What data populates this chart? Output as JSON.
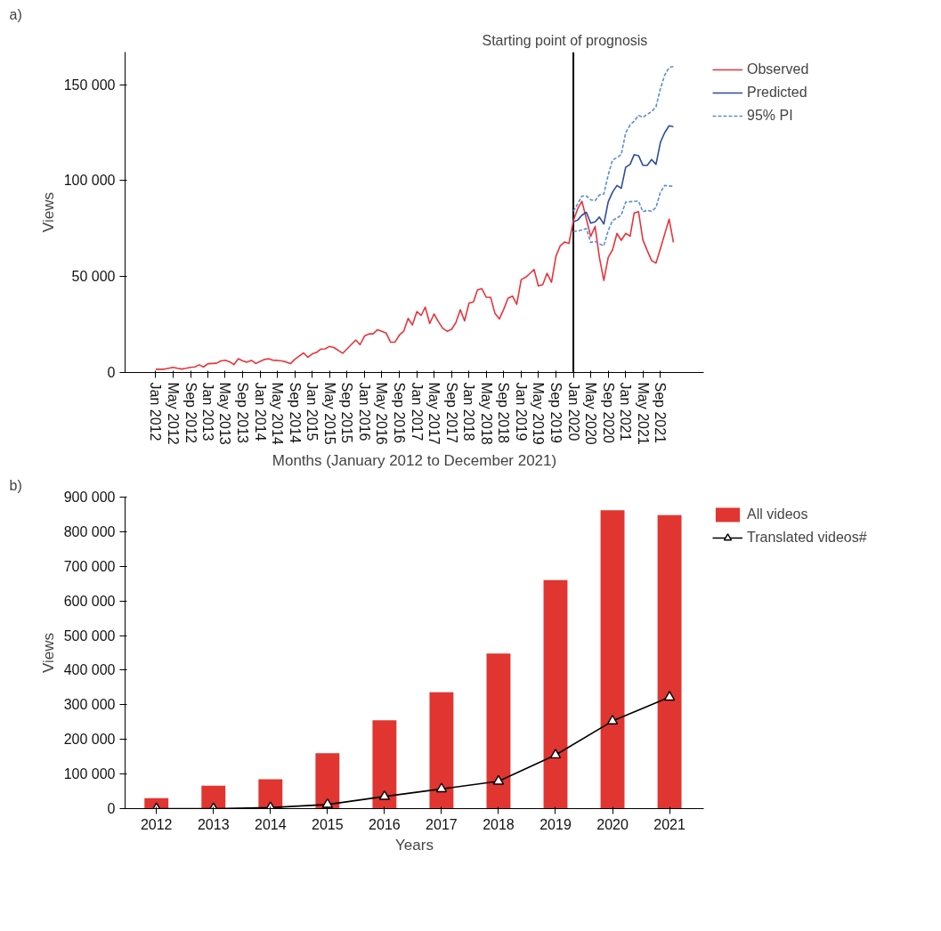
{
  "chart_data": [
    {
      "type": "line",
      "xlabel": "Months (January 2012 to December 2021)",
      "ylabel": "Views",
      "annotations": [
        "a)"
      ],
      "legend": "top right",
      "marker": "none",
      "xlim": [
        "2011-06",
        "2022-07"
      ],
      "ylim": [
        0,
        167000
      ],
      "yticks": [
        0,
        {
          "value": 50000,
          "label": "50 000"
        },
        {
          "value": 100000,
          "label": "100 000"
        },
        {
          "value": 150000,
          "label": "150 000"
        }
      ],
      "xticks": [
        {
          "value": "2012-01",
          "label": "Jan 2012"
        },
        {
          "value": "2012-05",
          "label": "May 2012"
        },
        {
          "value": "2012-09",
          "label": "Sep 2012"
        },
        {
          "value": "2013-01",
          "label": "Jan 2013"
        },
        {
          "value": "2013-05",
          "label": "May 2013"
        },
        {
          "value": "2013-09",
          "label": "Sep 2013"
        },
        {
          "value": "2014-01",
          "label": "Jan 2014"
        },
        {
          "value": "2014-05",
          "label": "May 2014"
        },
        {
          "value": "2014-09",
          "label": "Sep 2014"
        },
        {
          "value": "2015-01",
          "label": "Jan 2015"
        },
        {
          "value": "2015-05",
          "label": "May 2015"
        },
        {
          "value": "2015-09",
          "label": "Sep 2015"
        },
        {
          "value": "2016-01",
          "label": "Jan 2016"
        },
        {
          "value": "2016-05",
          "label": "May 2016"
        },
        {
          "value": "2016-09",
          "label": "Sep 2016"
        },
        {
          "value": "2017-01",
          "label": "Jan 2017"
        },
        {
          "value": "2017-05",
          "label": "May 2017"
        },
        {
          "value": "2017-09",
          "label": "Sep 2017"
        },
        {
          "value": "2018-01",
          "label": "Jan 2018"
        },
        {
          "value": "2018-05",
          "label": "May 2018"
        },
        {
          "value": "2018-09",
          "label": "Sep 2018"
        },
        {
          "value": "2019-01",
          "label": "Jan 2019"
        },
        {
          "value": "2019-05",
          "label": "May 2019"
        },
        {
          "value": "2019-09",
          "label": "Sep 2019"
        },
        {
          "value": "2020-01",
          "label": "Jan 2020"
        },
        {
          "value": "2020-05",
          "label": "May 2020"
        },
        {
          "value": "2020-09",
          "label": "Sep 2020"
        },
        {
          "value": "2021-01",
          "label": "Jan 2021"
        },
        {
          "value": "2021-05",
          "label": "May 2021"
        },
        {
          "value": "2021-09",
          "label": "Sep 2021"
        }
      ],
      "ref_lines": [
        {
          "axis": "x",
          "value": "2020-01",
          "label": "Starting point of prognosis",
          "color": "#000000"
        }
      ],
      "series": [
        {
          "name": "Observed",
          "color": "#e8343c",
          "x": [
            "2012-01",
            "2012-02",
            "2012-03",
            "2012-04",
            "2012-05",
            "2012-06",
            "2012-07",
            "2012-08",
            "2012-09",
            "2012-10",
            "2012-11",
            "2012-12",
            "2013-01",
            "2013-02",
            "2013-03",
            "2013-04",
            "2013-05",
            "2013-06",
            "2013-07",
            "2013-08",
            "2013-09",
            "2013-10",
            "2013-11",
            "2013-12",
            "2014-01",
            "2014-02",
            "2014-03",
            "2014-04",
            "2014-05",
            "2014-06",
            "2014-07",
            "2014-08",
            "2014-09",
            "2014-10",
            "2014-11",
            "2014-12",
            "2015-01",
            "2015-02",
            "2015-03",
            "2015-04",
            "2015-05",
            "2015-06",
            "2015-07",
            "2015-08",
            "2015-09",
            "2015-10",
            "2015-11",
            "2015-12",
            "2016-01",
            "2016-02",
            "2016-03",
            "2016-04",
            "2016-05",
            "2016-06",
            "2016-07",
            "2016-08",
            "2016-09",
            "2016-10",
            "2016-11",
            "2016-12",
            "2017-01",
            "2017-02",
            "2017-03",
            "2017-04",
            "2017-05",
            "2017-06",
            "2017-07",
            "2017-08",
            "2017-09",
            "2017-10",
            "2017-11",
            "2017-12",
            "2018-01",
            "2018-02",
            "2018-03",
            "2018-04",
            "2018-05",
            "2018-06",
            "2018-07",
            "2018-08",
            "2018-09",
            "2018-10",
            "2018-11",
            "2018-12",
            "2019-01",
            "2019-02",
            "2019-03",
            "2019-04",
            "2019-05",
            "2019-06",
            "2019-07",
            "2019-08",
            "2019-09",
            "2019-10",
            "2019-11",
            "2019-12",
            "2020-01",
            "2020-02",
            "2020-03",
            "2020-04",
            "2020-05",
            "2020-06",
            "2020-07",
            "2020-08",
            "2020-09",
            "2020-10",
            "2020-11",
            "2020-12",
            "2021-01",
            "2021-02",
            "2021-03",
            "2021-04",
            "2021-05",
            "2021-06",
            "2021-07",
            "2021-08",
            "2021-09",
            "2021-10",
            "2021-11",
            "2021-12"
          ],
          "values": [
            1700,
            1700,
            1700,
            2200,
            2700,
            2200,
            1800,
            2200,
            2700,
            2900,
            4000,
            2900,
            4600,
            4700,
            4800,
            6000,
            6400,
            5600,
            4100,
            7200,
            6000,
            5400,
            6300,
            4700,
            5800,
            6800,
            7200,
            6400,
            6300,
            6000,
            5500,
            4600,
            6900,
            8500,
            10200,
            7900,
            9700,
            10500,
            12200,
            12300,
            13600,
            13000,
            11500,
            10000,
            12300,
            14600,
            16900,
            14500,
            19000,
            20100,
            20100,
            22300,
            21500,
            20500,
            15800,
            15800,
            19500,
            21500,
            28200,
            24800,
            31700,
            29800,
            34100,
            25500,
            30500,
            26500,
            23000,
            21500,
            22500,
            26000,
            32700,
            26900,
            36200,
            36800,
            43000,
            43700,
            39200,
            39200,
            30900,
            27900,
            33000,
            38700,
            39800,
            35500,
            48400,
            49600,
            51500,
            53700,
            45100,
            45800,
            51700,
            47000,
            60600,
            66000,
            68000,
            67300,
            79200,
            85500,
            89200,
            80000,
            70900,
            76100,
            60000,
            48000,
            60000,
            63900,
            72500,
            68900,
            72500,
            71000,
            83100,
            83800,
            69200,
            63500,
            58400,
            57000,
            64600,
            72200,
            79900,
            67800
          ]
        },
        {
          "name": "Predicted",
          "color": "#2b4c9b",
          "x": [
            "2020-01",
            "2020-02",
            "2020-03",
            "2020-04",
            "2020-05",
            "2020-06",
            "2020-07",
            "2020-08",
            "2020-09",
            "2020-10",
            "2020-11",
            "2020-12",
            "2021-01",
            "2021-02",
            "2021-03",
            "2021-04",
            "2021-05",
            "2021-06",
            "2021-07",
            "2021-08",
            "2021-09",
            "2021-10",
            "2021-11",
            "2021-12"
          ],
          "values": [
            78500,
            79500,
            82000,
            83500,
            77800,
            78500,
            81000,
            77400,
            89000,
            94000,
            97500,
            96000,
            107000,
            108500,
            113500,
            113000,
            108000,
            108000,
            111000,
            108500,
            120000,
            125000,
            128600,
            128000
          ]
        },
        {
          "name": "95% PI",
          "color": "#5a8ed8",
          "line_style": "dashed",
          "x": [
            "2020-01",
            "2020-02",
            "2020-03",
            "2020-04",
            "2020-05",
            "2020-06",
            "2020-07",
            "2020-08",
            "2020-09",
            "2020-10",
            "2020-11",
            "2020-12",
            "2021-01",
            "2021-02",
            "2021-03",
            "2021-04",
            "2021-05",
            "2021-06",
            "2021-07",
            "2021-08",
            "2021-09",
            "2021-10",
            "2021-11",
            "2021-12"
          ],
          "values": [
            84000,
            88000,
            92000,
            92000,
            90000,
            89500,
            92500,
            93000,
            103000,
            110800,
            112000,
            113600,
            125000,
            129000,
            131000,
            134000,
            133000,
            134500,
            136000,
            138500,
            148000,
            155000,
            159000,
            159500
          ]
        },
        {
          "color": "#5a8ed8",
          "line_style": "dashed",
          "x": [
            "2020-01",
            "2020-02",
            "2020-03",
            "2020-04",
            "2020-05",
            "2020-06",
            "2020-07",
            "2020-08",
            "2020-09",
            "2020-10",
            "2020-11",
            "2020-12",
            "2021-01",
            "2021-02",
            "2021-03",
            "2021-04",
            "2021-05",
            "2021-06",
            "2021-07",
            "2021-08",
            "2021-09",
            "2021-10",
            "2021-11",
            "2021-12"
          ],
          "values": [
            73500,
            73800,
            74300,
            75000,
            67800,
            68300,
            67000,
            66000,
            74000,
            79200,
            80500,
            82000,
            88800,
            89000,
            89200,
            89300,
            83800,
            84500,
            84000,
            86000,
            94000,
            97500,
            97200,
            97100
          ]
        }
      ]
    },
    {
      "type": "bar",
      "xlabel": "Years",
      "ylabel": "Views",
      "annotations": [
        "b)"
      ],
      "legend": "top right",
      "categories": [
        "2012",
        "2013",
        "2014",
        "2015",
        "2016",
        "2017",
        "2018",
        "2019",
        "2020",
        "2021"
      ],
      "ylim": [
        0,
        900000
      ],
      "yticks": [
        0,
        {
          "value": 100000,
          "label": "100 000"
        },
        {
          "value": 200000,
          "label": "200 000"
        },
        {
          "value": 300000,
          "label": "300 000"
        },
        {
          "value": 400000,
          "label": "400 000"
        },
        {
          "value": 500000,
          "label": "500 000"
        },
        {
          "value": 600000,
          "label": "600 000"
        },
        {
          "value": 700000,
          "label": "700 000"
        },
        {
          "value": 800000,
          "label": "800 000"
        },
        {
          "value": 900000,
          "label": "900 000"
        }
      ],
      "series": [
        {
          "name": "All videos",
          "color": "#e03531",
          "values": [
            30000,
            66000,
            85000,
            160000,
            255000,
            336000,
            448000,
            660000,
            862000,
            848000
          ]
        },
        {
          "name": "Translated videos#",
          "type": "line",
          "color": "#000000",
          "marker": "triangle",
          "values": [
            0,
            0,
            3000,
            12000,
            35000,
            57000,
            79000,
            155000,
            253000,
            322000
          ]
        }
      ]
    }
  ]
}
